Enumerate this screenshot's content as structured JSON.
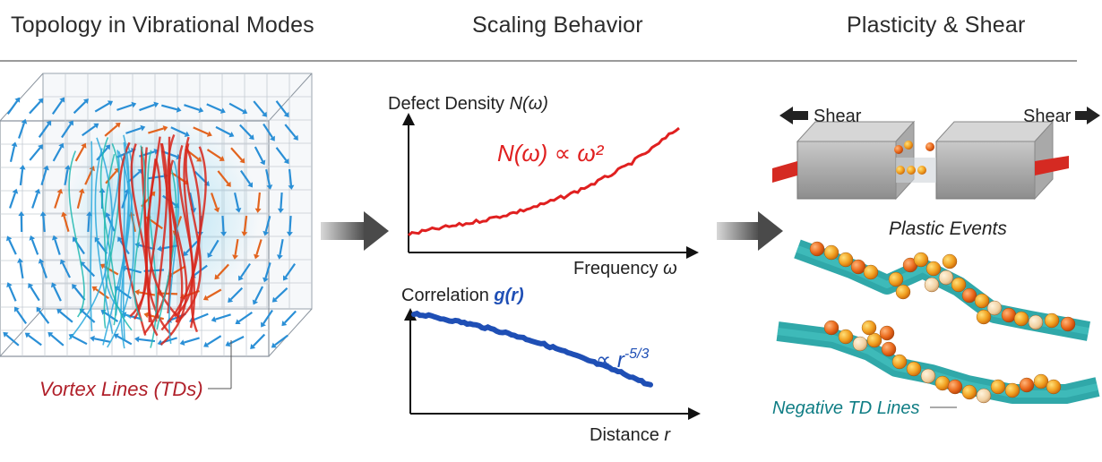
{
  "headers": {
    "topology": "Topology in Vibrational Modes",
    "scaling": "Scaling Behavior",
    "plasticity": "Plasticity & Shear"
  },
  "panel_left": {
    "callout": "Vortex Lines (TDs)"
  },
  "chart_data": [
    {
      "type": "line",
      "ylabel_prefix": "Defect Density ",
      "ylabel_func": "N(ω)",
      "xlabel_prefix": "Frequency ",
      "xlabel_var": "ω",
      "annotation": "N(ω) ∝ ω²",
      "annotation_color": "#e02020",
      "series": [
        {
          "color": "#e02020",
          "x": [
            0.0,
            0.1,
            0.2,
            0.3,
            0.4,
            0.5,
            0.6,
            0.7,
            0.8,
            0.9,
            1.0
          ],
          "y": [
            0.0,
            0.05,
            0.09,
            0.14,
            0.2,
            0.27,
            0.36,
            0.47,
            0.6,
            0.76,
            0.95
          ]
        }
      ]
    },
    {
      "type": "line",
      "ylabel_prefix": "Correlation ",
      "ylabel_func": "g(r)",
      "ylabel_func_color": "#1f4fb5",
      "xlabel_prefix": "Distance ",
      "xlabel_var": "r",
      "annotation": "∝ r",
      "annotation_exp": "-5/3",
      "annotation_color": "#1f4fb5",
      "series": [
        {
          "color": "#1f4fb5",
          "x": [
            0.0,
            0.1,
            0.2,
            0.3,
            0.4,
            0.5,
            0.6,
            0.7,
            0.8,
            0.9,
            1.0
          ],
          "y": [
            1.0,
            0.95,
            0.9,
            0.84,
            0.77,
            0.69,
            0.6,
            0.5,
            0.4,
            0.3,
            0.18
          ]
        }
      ]
    }
  ],
  "panel_right": {
    "shear_left": "Shear",
    "shear_right": "Shear",
    "plastic_events": "Plastic Events",
    "negative_td": "Negative TD Lines"
  },
  "colors": {
    "red_lines": "#d7261b",
    "cyan_lines": "#29a8dc",
    "teal_band": "#1a9ea0",
    "orange_particle": "#f19a1a",
    "arrow_gray": "#5a5a5a"
  }
}
